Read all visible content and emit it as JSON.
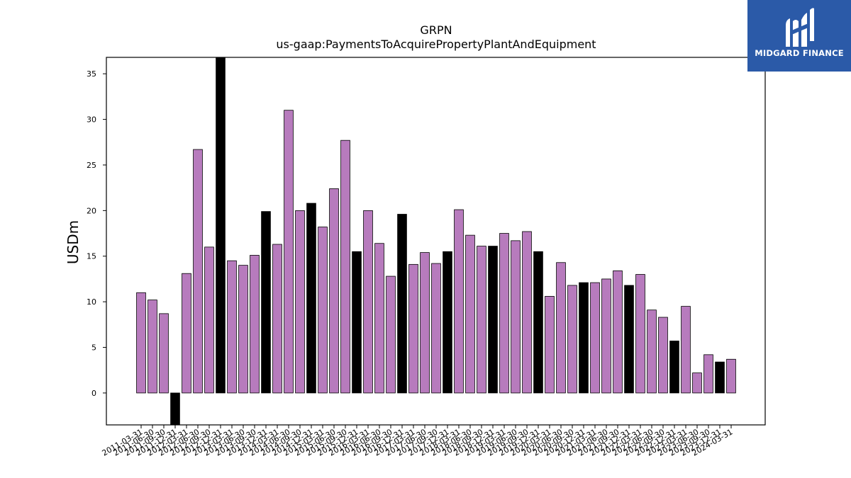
{
  "chart_data": {
    "type": "bar",
    "title": "GRPN",
    "subtitle": "us-gaap:PaymentsToAcquirePropertyPlantAndEquipment",
    "xlabel": "",
    "ylabel": "USDm",
    "ylim": [
      -3.5,
      36.8
    ],
    "yticks": [
      0,
      5,
      10,
      15,
      20,
      25,
      30,
      35
    ],
    "categories": [
      "2011-03-31",
      "2011-06-30",
      "2011-09-30",
      "2011-12-31",
      "2012-03-31",
      "2012-06-30",
      "2012-09-30",
      "2012-12-31",
      "2013-03-31",
      "2013-06-30",
      "2013-09-30",
      "2013-12-31",
      "2014-03-31",
      "2014-06-30",
      "2014-09-30",
      "2014-12-31",
      "2015-03-31",
      "2015-06-30",
      "2015-09-30",
      "2015-12-31",
      "2016-03-31",
      "2016-06-30",
      "2016-09-30",
      "2016-12-31",
      "2017-03-31",
      "2017-06-30",
      "2017-09-30",
      "2017-12-31",
      "2018-03-31",
      "2018-06-30",
      "2018-09-30",
      "2018-12-31",
      "2019-03-31",
      "2019-06-30",
      "2019-09-30",
      "2019-12-31",
      "2020-03-31",
      "2020-06-30",
      "2020-09-30",
      "2020-12-31",
      "2021-03-31",
      "2021-06-30",
      "2021-09-30",
      "2021-12-31",
      "2022-03-31",
      "2022-06-30",
      "2022-09-30",
      "2022-12-31",
      "2023-03-31",
      "2023-06-30",
      "2023-09-30",
      "2023-12-31",
      "2024-03-31"
    ],
    "values": [
      11.0,
      10.2,
      8.7,
      -3.5,
      13.1,
      26.7,
      16.0,
      36.8,
      14.5,
      14.0,
      15.1,
      19.9,
      16.3,
      31.0,
      20.0,
      20.8,
      18.2,
      22.4,
      27.7,
      15.5,
      20.0,
      16.4,
      12.8,
      19.6,
      14.1,
      15.4,
      14.2,
      15.5,
      20.1,
      17.3,
      16.1,
      16.1,
      17.5,
      16.7,
      17.7,
      15.5,
      10.6,
      14.3,
      11.8,
      12.1,
      12.1,
      12.5,
      13.4,
      11.8,
      13.0,
      9.1,
      8.3,
      5.7,
      9.5,
      2.2,
      4.2,
      3.4,
      3.7
    ],
    "highlight": [
      false,
      false,
      false,
      true,
      false,
      false,
      false,
      true,
      false,
      false,
      false,
      true,
      false,
      false,
      false,
      true,
      false,
      false,
      false,
      true,
      false,
      false,
      false,
      true,
      false,
      false,
      false,
      true,
      false,
      false,
      false,
      true,
      false,
      false,
      false,
      true,
      false,
      false,
      false,
      true,
      false,
      false,
      false,
      true,
      false,
      false,
      false,
      true,
      false,
      false,
      false,
      true,
      false
    ],
    "colors": {
      "bar": "#b77bbd",
      "highlight": "#000000",
      "edge": "#000000"
    },
    "grid": false,
    "legend": "none"
  },
  "logo": {
    "text": "MIDGARD FINANCE",
    "icon": "midgard-logo-icon"
  }
}
